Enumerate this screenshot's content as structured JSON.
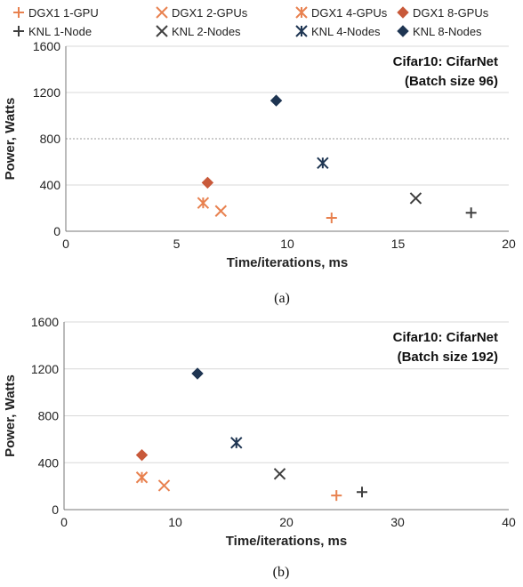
{
  "colors": {
    "dgx1": "#E8814F",
    "dgx1_dark": "#C8593A",
    "knl": "#3F3F3F",
    "knl_dark": "#1E3552",
    "grid": "#D8D8D8",
    "axis": "#777777"
  },
  "legend": [
    {
      "label": "DGX1 1-GPU",
      "marker": "plus",
      "color": "#E8814F"
    },
    {
      "label": "DGX1 2-GPUs",
      "marker": "x",
      "color": "#E8814F"
    },
    {
      "label": "DGX1 4-GPUs",
      "marker": "asterisk",
      "color": "#E8814F"
    },
    {
      "label": "DGX1 8-GPUs",
      "marker": "diamond",
      "color": "#C8593A"
    },
    {
      "label": "KNL 1-Node",
      "marker": "plus",
      "color": "#3F3F3F"
    },
    {
      "label": "KNL 2-Nodes",
      "marker": "x",
      "color": "#3F3F3F"
    },
    {
      "label": "KNL 4-Nodes",
      "marker": "asterisk",
      "color": "#1E3552"
    },
    {
      "label": "KNL 8-Nodes",
      "marker": "diamond",
      "color": "#1E3552"
    }
  ],
  "chart_data": [
    {
      "type": "scatter",
      "panel_caption": "(a)",
      "annotation": [
        "Cifar10: CifarNet",
        "(Batch size 96)"
      ],
      "xlabel": "Time/iterations, ms",
      "ylabel": "Power, Watts",
      "xlim": [
        0,
        20
      ],
      "ylim": [
        0,
        1600
      ],
      "xticks": [
        0,
        5,
        10,
        15,
        20
      ],
      "yticks": [
        0,
        400,
        800,
        1200,
        1600
      ],
      "grid": "horizontal",
      "series": [
        {
          "name": "DGX1 1-GPU",
          "points": [
            [
              12.0,
              115
            ]
          ]
        },
        {
          "name": "DGX1 2-GPUs",
          "points": [
            [
              7.0,
              175
            ]
          ]
        },
        {
          "name": "DGX1 4-GPUs",
          "points": [
            [
              6.2,
              245
            ]
          ]
        },
        {
          "name": "DGX1 8-GPUs",
          "points": [
            [
              6.4,
              420
            ]
          ]
        },
        {
          "name": "KNL 1-Node",
          "points": [
            [
              18.3,
              160
            ]
          ]
        },
        {
          "name": "KNL 2-Nodes",
          "points": [
            [
              15.8,
              285
            ]
          ]
        },
        {
          "name": "KNL 4-Nodes",
          "points": [
            [
              11.6,
              590
            ]
          ]
        },
        {
          "name": "KNL 8-Nodes",
          "points": [
            [
              9.5,
              1130
            ]
          ]
        }
      ]
    },
    {
      "type": "scatter",
      "panel_caption": "(b)",
      "annotation": [
        "Cifar10: CifarNet",
        "(Batch size 192)"
      ],
      "xlabel": "Time/iterations, ms",
      "ylabel": "Power, Watts",
      "xlim": [
        0,
        40
      ],
      "ylim": [
        0,
        1600
      ],
      "xticks": [
        0,
        10,
        20,
        30,
        40
      ],
      "yticks": [
        0,
        400,
        800,
        1200,
        1600
      ],
      "grid": "horizontal",
      "series": [
        {
          "name": "DGX1 1-GPU",
          "points": [
            [
              24.5,
              120
            ]
          ]
        },
        {
          "name": "DGX1 2-GPUs",
          "points": [
            [
              9.0,
              205
            ]
          ]
        },
        {
          "name": "DGX1 4-GPUs",
          "points": [
            [
              7.0,
              275
            ]
          ]
        },
        {
          "name": "DGX1 8-GPUs",
          "points": [
            [
              7.0,
              465
            ]
          ]
        },
        {
          "name": "KNL 1-Node",
          "points": [
            [
              26.8,
              150
            ]
          ]
        },
        {
          "name": "KNL 2-Nodes",
          "points": [
            [
              19.4,
              305
            ]
          ]
        },
        {
          "name": "KNL 4-Nodes",
          "points": [
            [
              15.5,
              570
            ]
          ]
        },
        {
          "name": "KNL 8-Nodes",
          "points": [
            [
              12.0,
              1160
            ]
          ]
        }
      ]
    }
  ]
}
